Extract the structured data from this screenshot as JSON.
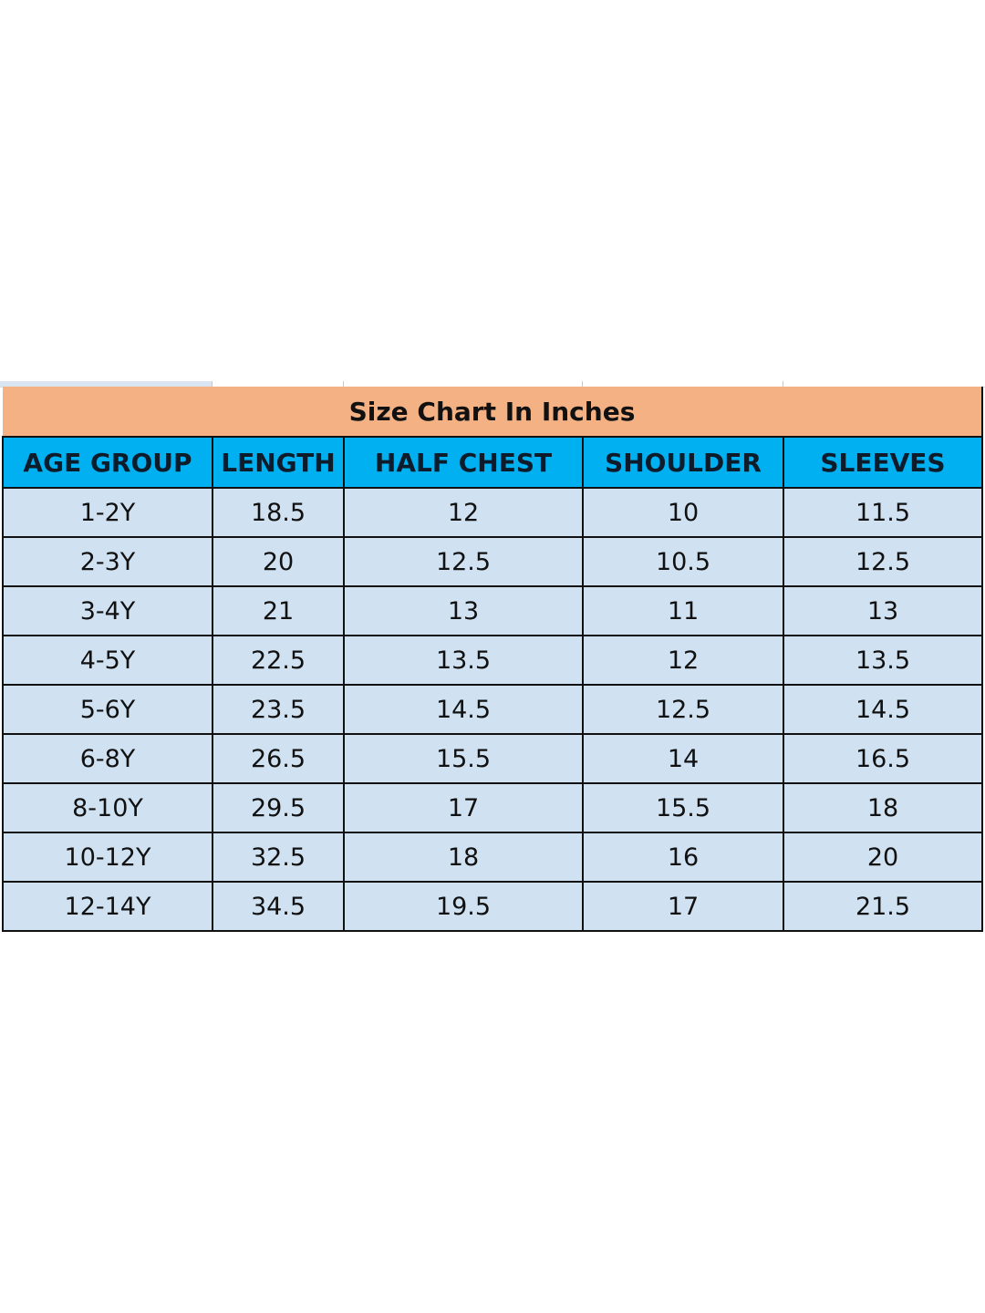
{
  "title": "Size Chart In Inches",
  "colors": {
    "title_bg": "#f4b183",
    "header_bg": "#00b0f0",
    "cell_bg": "#d0e2f2",
    "border": "#111111"
  },
  "columns": [
    "AGE GROUP",
    "LENGTH",
    "HALF CHEST",
    "SHOULDER",
    "SLEEVES"
  ],
  "rows": [
    [
      "1-2Y",
      "18.5",
      "12",
      "10",
      "11.5"
    ],
    [
      "2-3Y",
      "20",
      "12.5",
      "10.5",
      "12.5"
    ],
    [
      "3-4Y",
      "21",
      "13",
      "11",
      "13"
    ],
    [
      "4-5Y",
      "22.5",
      "13.5",
      "12",
      "13.5"
    ],
    [
      "5-6Y",
      "23.5",
      "14.5",
      "12.5",
      "14.5"
    ],
    [
      "6-8Y",
      "26.5",
      "15.5",
      "14",
      "16.5"
    ],
    [
      "8-10Y",
      "29.5",
      "17",
      "15.5",
      "18"
    ],
    [
      "10-12Y",
      "32.5",
      "18",
      "16",
      "20"
    ],
    [
      "12-14Y",
      "34.5",
      "19.5",
      "17",
      "21.5"
    ]
  ]
}
